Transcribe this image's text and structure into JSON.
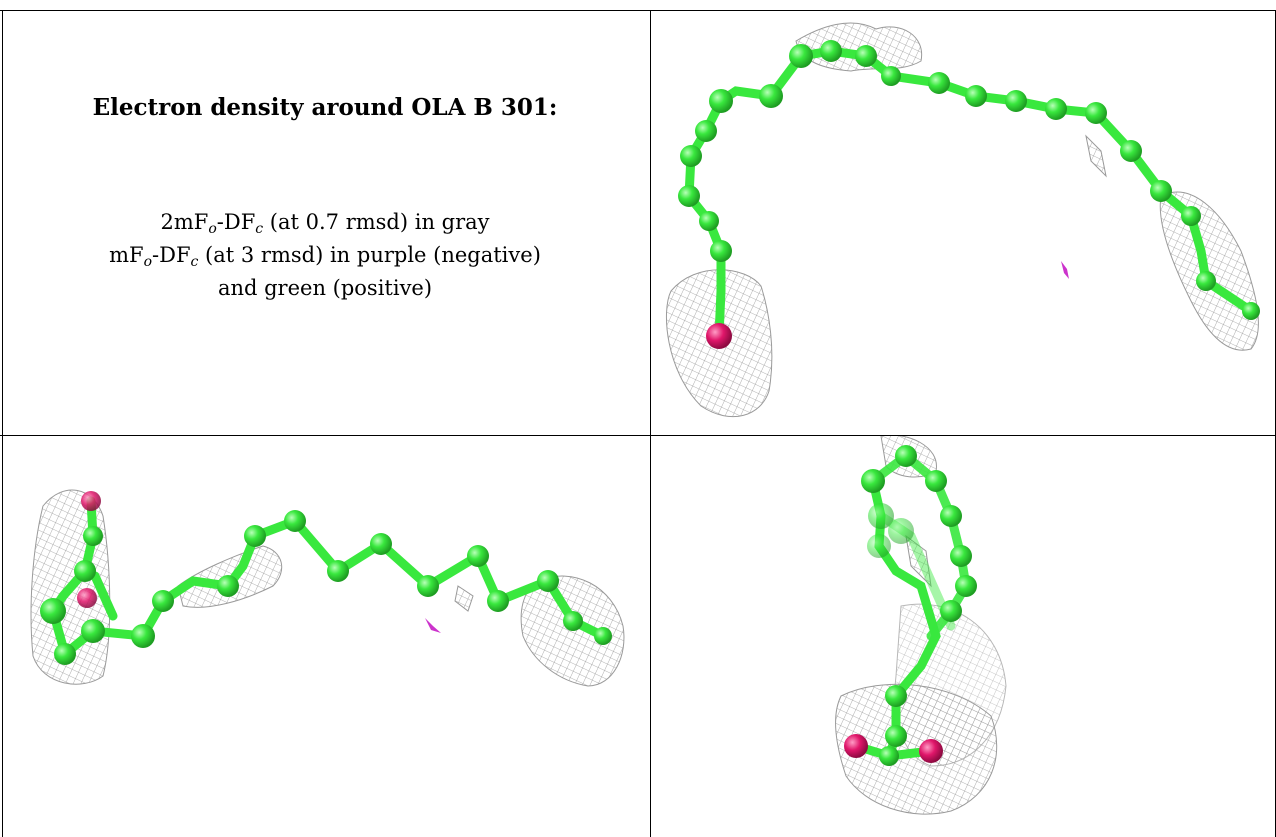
{
  "caption": {
    "title": "Electron density around OLA B 301:",
    "map1": {
      "pre": "2mF",
      "s1": "o",
      "mid": "-DF",
      "s2": "c",
      "post": " (at 0.7 rmsd) in gray"
    },
    "map2": {
      "pre": "mF",
      "s1": "o",
      "mid": "-DF",
      "s2": "c",
      "post": " (at 3 rmsd) in purple (negative)"
    },
    "map3": "and green (positive)"
  },
  "colors": {
    "carbon": "#39e83e",
    "oxygen": "#e0166a",
    "mesh": "#9a9a9a",
    "negative_density": "#cc33cc",
    "border": "#000000"
  }
}
